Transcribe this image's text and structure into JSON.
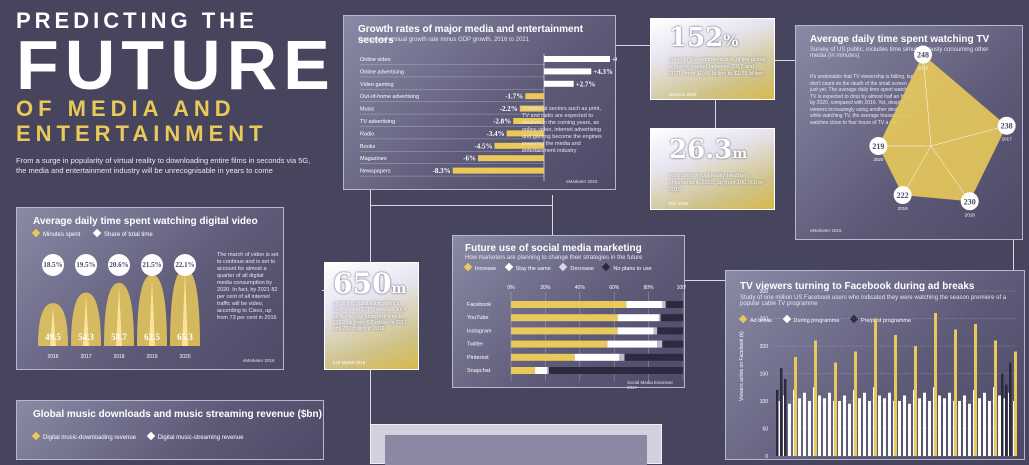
{
  "hero": {
    "line1": "PREDICTING THE",
    "line2": "FUTURE",
    "line3": "OF MEDIA AND",
    "line4": "ENTERTAINMENT",
    "intro": "From a surge in popularity of virtual reality to downloading entire films in seconds via 5G, the media and entertainment industry will be unrecognisable in years to come"
  },
  "growth": {
    "title": "Growth rates of major media and entertainment sectors",
    "subtitle": "Compound annual growth rate minus GDP growth, 2016 to 2021",
    "note": "Traditional sectors such as print, TV and radio are expected to weaken in the coming years, as online video, internet advertising and gaming become the engines powering the media and entertainment industry",
    "source": "eMarketer 2016"
  },
  "stat152": {
    "value": "152",
    "unit": "%",
    "text": "Jump in the estimated size of the global e-sports market between 2017 and 2021, from $0.66 billion to $1.65 billion",
    "source": "Newzoo 2018"
  },
  "stat263": {
    "value": "26.3",
    "unit": "m",
    "text": "estimated virtual reality headset shipments in 2020, up from 100,000 in 2016",
    "source": "IDC 2016"
  },
  "stat650": {
    "value": "650",
    "unit": "m",
    "text": "predicted global subscribers to over-the-top (OTT) services such as Netflix and Amazon Prime by 2021, up from 400 million in 2017 and 290 million in 2016",
    "source": "IHS Markit 2018"
  },
  "tv": {
    "title": "Average daily time spent watching TV",
    "subtitle": "Survey of US public; includes time simultaneously consuming other media (in minutes)",
    "note": "It's undeniable that TV viewership is falling, but don't count on the death of the small screen just yet. The average daily time spent watching TV is expected to drop by almost half an hour by 2020, compared with 2016. Yet, despite viewers increasingly using another device while watching TV, the average household still watches close to four hours of TV a day",
    "source": "eMarketer 2016"
  },
  "video": {
    "title": "Average daily time spent watching digital video",
    "legend_minutes": "Minutes spent",
    "legend_share": "Share of total time",
    "note": "The march of video is set to continue and is set to account for almost a quarter of all digital media consumption by 2020. In fact, by 2021 82 per cent of all internet traffic will be video, according to Cisco, up from 73 per cent in 2016",
    "source": "eMarketer 2016"
  },
  "social": {
    "title": "Future use of social media marketing",
    "subtitle": "How marketers are planning to change their strategies in the future",
    "legend": [
      "Increase",
      "Stay the same",
      "Decrease",
      "No plans to use"
    ],
    "source": "Social Media Examiner 2017"
  },
  "facebook": {
    "title": "TV viewers turning to Facebook during ad breaks",
    "subtitle": "Study of one million US Facebook users who indicated they were watching the season premiere of a popular cable TV programme",
    "legend": [
      "Ad break",
      "During programme",
      "Pre/post programme"
    ],
    "ylabel": "Viewers active on Facebook (k)"
  },
  "music": {
    "title": "Global music downloads and music streaming revenue ($bn)",
    "legend": [
      "Digital music-downloading revenue",
      "Digital music-streaming revenue"
    ]
  },
  "chart_data": [
    {
      "type": "bar",
      "title": "Growth rates of major media and entertainment sectors",
      "categories": [
        "Online video",
        "Online advertising",
        "Video gaming",
        "Out-of-home advertising",
        "Music",
        "TV advertising",
        "Radio",
        "Books",
        "Magazines",
        "Newspapers"
      ],
      "values": [
        6,
        4.3,
        2.7,
        -1.7,
        -2.2,
        -2.8,
        -3.4,
        -4.5,
        -6,
        -8.3
      ],
      "labels": [
        "+6%",
        "+4.3%",
        "+2.7%",
        "-1.7%",
        "-2.2%",
        "-2.8%",
        "-3.4%",
        "-4.5%",
        "-6%",
        "-8.3%"
      ]
    },
    {
      "type": "bar",
      "title": "Average daily time spent watching digital video",
      "categories": [
        "2016",
        "2017",
        "2018",
        "2019",
        "2020"
      ],
      "series": [
        {
          "name": "Minutes spent",
          "values": [
            49.5,
            54.3,
            58.7,
            62.5,
            65.3
          ]
        },
        {
          "name": "Share of total time",
          "values": [
            18.5,
            19.5,
            20.6,
            21.5,
            22.1
          ],
          "labels": [
            "18.5%",
            "19.5%",
            "20.6%",
            "21.5%",
            "22.1%"
          ]
        }
      ]
    },
    {
      "type": "bar",
      "title": "Future use of social media marketing",
      "categories": [
        "Facebook",
        "YouTube",
        "Instagram",
        "Twitter",
        "Pinterest",
        "Snapchat"
      ],
      "x_ticks": [
        "0%",
        "20%",
        "40%",
        "60%",
        "80%",
        "100%"
      ],
      "series": [
        {
          "name": "Increase",
          "values": [
            67,
            62,
            62,
            56,
            37,
            14
          ]
        },
        {
          "name": "Stay the same",
          "values": [
            21,
            24,
            21,
            29,
            26,
            7
          ]
        },
        {
          "name": "Decrease",
          "values": [
            2,
            1,
            2,
            3,
            3,
            1
          ]
        },
        {
          "name": "No plans to use",
          "values": [
            10,
            13,
            15,
            12,
            34,
            78
          ]
        }
      ]
    },
    {
      "type": "area",
      "title": "Average daily time spent watching TV",
      "categories": [
        "2016",
        "2017",
        "2018",
        "2019",
        "2020"
      ],
      "values": [
        248,
        238,
        230,
        222,
        219
      ]
    },
    {
      "type": "bar",
      "title": "TV viewers turning to Facebook during ad breaks",
      "y_ticks": [
        0,
        50,
        100,
        150,
        200,
        250,
        300
      ],
      "ylim": [
        0,
        300
      ],
      "series": [
        {
          "name": "Ad break",
          "values": [
            180,
            210,
            170,
            190,
            250,
            220,
            200,
            260,
            230,
            240,
            210,
            190
          ]
        },
        {
          "name": "During programme",
          "values": [
            100,
            110,
            95,
            120,
            105,
            115,
            100,
            125,
            110,
            105,
            115,
            100
          ]
        },
        {
          "name": "Pre/post programme",
          "values": [
            120,
            160,
            140,
            150,
            130,
            170
          ]
        }
      ]
    },
    {
      "type": "line",
      "title": "Global music downloads and music streaming revenue ($bn)",
      "series": [
        {
          "name": "Digital music-downloading revenue",
          "values": []
        },
        {
          "name": "Digital music-streaming revenue",
          "values": []
        }
      ]
    }
  ]
}
